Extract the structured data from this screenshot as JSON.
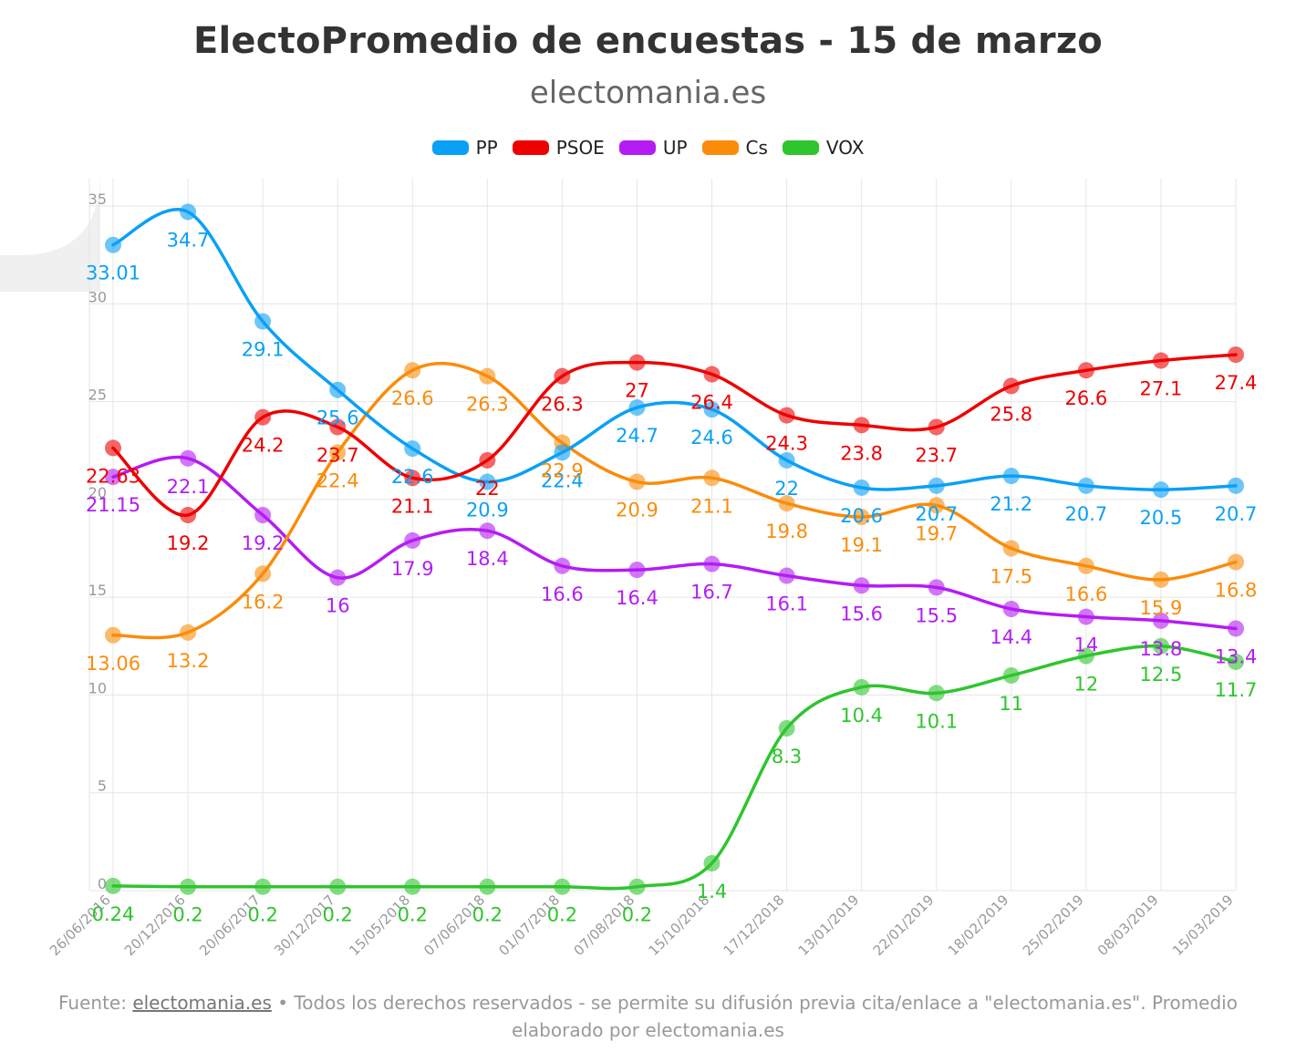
{
  "header": {
    "title": "ElectoPromedio de encuestas - 15 de marzo",
    "subtitle": "electomania.es"
  },
  "footer": {
    "prefix": "Fuente: ",
    "link": "electomania.es",
    "text": " • Todos los derechos reservados - se permite su difusión previa cita/enlace a \"electomania.es\". Promedio elaborado por electomania.es"
  },
  "chart_data": {
    "type": "line",
    "categories": [
      "26/06/2016",
      "20/12/2016",
      "20/06/2017",
      "30/12/2017",
      "15/05/2018",
      "07/06/2018",
      "01/07/2018",
      "07/08/2018",
      "15/10/2018",
      "17/12/2018",
      "13/01/2019",
      "22/01/2019",
      "18/02/2019",
      "25/02/2019",
      "08/03/2019",
      "15/03/2019"
    ],
    "ylim": [
      0,
      35
    ],
    "yticks": [
      0,
      5,
      10,
      15,
      20,
      25,
      30,
      35
    ],
    "grid": true,
    "legend_position": "top",
    "series": [
      {
        "name": "PP",
        "color": "#0aa0f6",
        "values": [
          33.01,
          34.7,
          29.1,
          25.6,
          22.6,
          20.9,
          22.4,
          24.7,
          24.6,
          22,
          20.6,
          20.7,
          21.2,
          20.7,
          20.5,
          20.7
        ],
        "labels": [
          "33.01",
          "34.7",
          "29.1",
          "25.6",
          "22.6",
          "20.9",
          "22.4",
          "24.7",
          "24.6",
          "22",
          "20.6",
          "20.7",
          "21.2",
          "20.7",
          "20.5",
          "20.7"
        ]
      },
      {
        "name": "PSOE",
        "color": "#ee0000",
        "values": [
          22.63,
          19.2,
          24.2,
          23.7,
          21.1,
          22,
          26.3,
          27,
          26.4,
          24.3,
          23.8,
          23.7,
          25.8,
          26.6,
          27.1,
          27.4
        ],
        "labels": [
          "22.63",
          "19.2",
          "24.2",
          "23.7",
          "21.1",
          "22",
          "26.3",
          "27",
          "26.4",
          "24.3",
          "23.8",
          "23.7",
          "25.8",
          "26.6",
          "27.1",
          "27.4"
        ]
      },
      {
        "name": "UP",
        "color": "#b41cf4",
        "values": [
          21.15,
          22.1,
          19.2,
          16,
          17.9,
          18.4,
          16.6,
          16.4,
          16.7,
          16.1,
          15.6,
          15.5,
          14.4,
          14,
          13.8,
          13.4
        ],
        "labels": [
          "21.15",
          "22.1",
          "19.2",
          "16",
          "17.9",
          "18.4",
          "16.6",
          "16.4",
          "16.7",
          "16.1",
          "15.6",
          "15.5",
          "14.4",
          "14",
          "13.8",
          "13.4"
        ]
      },
      {
        "name": "Cs",
        "color": "#fa8c0a",
        "values": [
          13.06,
          13.2,
          16.2,
          22.4,
          26.6,
          26.3,
          22.9,
          20.9,
          21.1,
          19.8,
          19.1,
          19.7,
          17.5,
          16.6,
          15.9,
          16.8
        ],
        "labels": [
          "13.06",
          "13.2",
          "16.2",
          "22.4",
          "26.6",
          "26.3",
          "22.9",
          "20.9",
          "21.1",
          "19.8",
          "19.1",
          "19.7",
          "17.5",
          "16.6",
          "15.9",
          "16.8"
        ]
      },
      {
        "name": "VOX",
        "color": "#2ec52e",
        "values": [
          0.24,
          0.2,
          0.2,
          0.2,
          0.2,
          0.2,
          0.2,
          0.2,
          1.4,
          8.3,
          10.4,
          10.1,
          11,
          12,
          12.5,
          11.7
        ],
        "labels": [
          "0.24",
          "0.2",
          "0.2",
          "0.2",
          "0.2",
          "0.2",
          "0.2",
          "0.2",
          "1.4",
          "8.3",
          "10.4",
          "10.1",
          "11",
          "12",
          "12.5",
          "11.7"
        ]
      }
    ]
  }
}
